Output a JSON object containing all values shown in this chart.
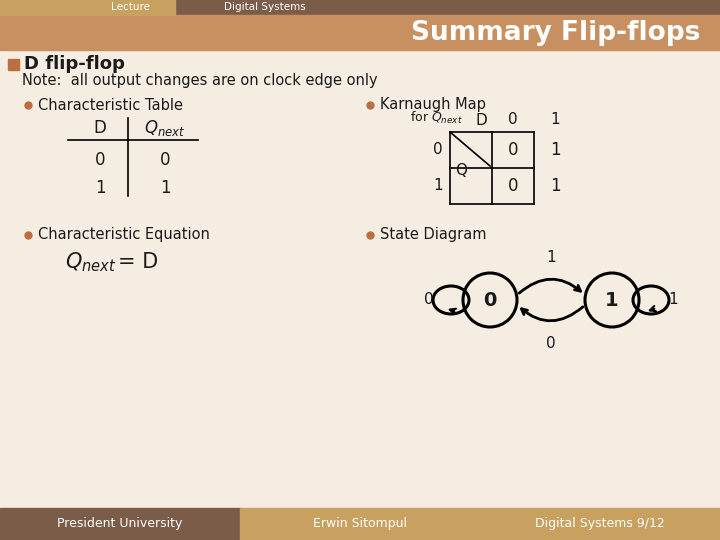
{
  "title_bar_color1": "#c8a060",
  "title_bar_color2": "#7a5c48",
  "title_text": "Summary Flip-flops",
  "header_label1": "Lecture",
  "header_label2": "Digital Systems",
  "bg_color": "#f0e8dc",
  "content_bg": "#f5ede2",
  "main_title": "D flip-flop",
  "note_text": "Note:  all output changes are on clock edge only",
  "bullet_color": "#b87040",
  "section1_title": "Characteristic Table",
  "section2_title": "Karnaugh Map",
  "section3_title": "Characteristic Equation",
  "section4_title": "State Diagram",
  "footer_color1": "#7a5c48",
  "footer_color2": "#c8a060",
  "footer_color3": "#c8a060",
  "footer1": "President University",
  "footer2": "Erwin Sitompul",
  "footer3": "Digital Systems 9/12",
  "title_bg": "#c89060"
}
